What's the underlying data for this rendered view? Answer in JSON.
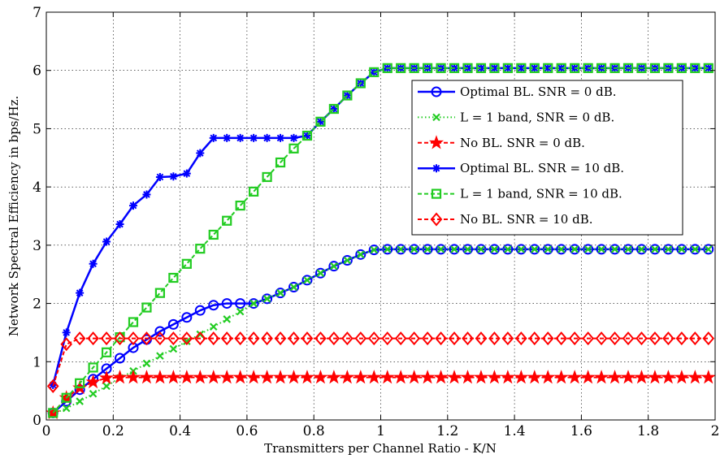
{
  "chart_data": {
    "type": "line",
    "title": "",
    "xlabel": "Transmitters per Channel Ratio - K/N",
    "ylabel": "Network Spectral Efficiency in bps/Hz.",
    "xlim": [
      0,
      2
    ],
    "ylim": [
      0,
      7
    ],
    "xticks": [
      "0",
      "0.2",
      "0.4",
      "0.6",
      "0.8",
      "1",
      "1.2",
      "1.4",
      "1.6",
      "1.8",
      "2"
    ],
    "yticks": [
      "0",
      "1",
      "2",
      "3",
      "4",
      "5",
      "6",
      "7"
    ],
    "grid": true,
    "legend_position": "top-right",
    "x": [
      0.02,
      0.06,
      0.1,
      0.14,
      0.18,
      0.22,
      0.26,
      0.3,
      0.34,
      0.38,
      0.42,
      0.46,
      0.5,
      0.54,
      0.58,
      0.62,
      0.66,
      0.7,
      0.74,
      0.78,
      0.82,
      0.86,
      0.9,
      0.94,
      0.98,
      1.02,
      1.06,
      1.1,
      1.14,
      1.18,
      1.22,
      1.26,
      1.3,
      1.34,
      1.38,
      1.42,
      1.46,
      1.5,
      1.54,
      1.58,
      1.62,
      1.66,
      1.7,
      1.74,
      1.78,
      1.82,
      1.86,
      1.9,
      1.94,
      1.98
    ],
    "series": [
      {
        "name": "Optimal BL. SNR = 0 dB.",
        "color": "#0000ff",
        "marker": "circle",
        "values": [
          0.12,
          0.32,
          0.52,
          0.7,
          0.88,
          1.06,
          1.24,
          1.38,
          1.52,
          1.64,
          1.76,
          1.88,
          1.97,
          2.0,
          2.0,
          2.0,
          2.08,
          2.18,
          2.28,
          2.4,
          2.52,
          2.64,
          2.74,
          2.84,
          2.92,
          2.93,
          2.93,
          2.93,
          2.93,
          2.93,
          2.93,
          2.93,
          2.93,
          2.93,
          2.93,
          2.93,
          2.93,
          2.93,
          2.93,
          2.93,
          2.93,
          2.93,
          2.93,
          2.93,
          2.93,
          2.93,
          2.93,
          2.93,
          2.93,
          2.93
        ]
      },
      {
        "name": "L = 1 band, SNR = 0 dB.",
        "color": "#22cc22",
        "marker": "x",
        "values": [
          0.1,
          0.2,
          0.32,
          0.45,
          0.58,
          0.72,
          0.84,
          0.97,
          1.1,
          1.22,
          1.35,
          1.47,
          1.6,
          1.73,
          1.86,
          2.0,
          2.08,
          2.18,
          2.28,
          2.4,
          2.52,
          2.64,
          2.74,
          2.84,
          2.92,
          2.93,
          2.93,
          2.93,
          2.93,
          2.93,
          2.93,
          2.93,
          2.93,
          2.93,
          2.93,
          2.93,
          2.93,
          2.93,
          2.93,
          2.93,
          2.93,
          2.93,
          2.93,
          2.93,
          2.93,
          2.93,
          2.93,
          2.93,
          2.93,
          2.93
        ]
      },
      {
        "name": "No BL. SNR = 0 dB.",
        "color": "#ff0000",
        "marker": "star",
        "values": [
          0.12,
          0.38,
          0.55,
          0.65,
          0.72,
          0.73,
          0.73,
          0.73,
          0.73,
          0.73,
          0.73,
          0.73,
          0.73,
          0.73,
          0.73,
          0.73,
          0.73,
          0.73,
          0.73,
          0.73,
          0.73,
          0.73,
          0.73,
          0.73,
          0.73,
          0.73,
          0.73,
          0.73,
          0.73,
          0.73,
          0.73,
          0.73,
          0.73,
          0.73,
          0.73,
          0.73,
          0.73,
          0.73,
          0.73,
          0.73,
          0.73,
          0.73,
          0.73,
          0.73,
          0.73,
          0.73,
          0.73,
          0.73,
          0.73,
          0.73
        ]
      },
      {
        "name": "Optimal BL. SNR = 10 dB.",
        "color": "#0000ff",
        "marker": "asterisk",
        "values": [
          0.6,
          1.5,
          2.18,
          2.68,
          3.06,
          3.36,
          3.68,
          3.87,
          4.17,
          4.18,
          4.23,
          4.58,
          4.84,
          4.84,
          4.84,
          4.84,
          4.84,
          4.84,
          4.84,
          4.88,
          5.12,
          5.34,
          5.57,
          5.78,
          5.97,
          6.04,
          6.04,
          6.04,
          6.04,
          6.04,
          6.04,
          6.04,
          6.04,
          6.04,
          6.04,
          6.04,
          6.04,
          6.04,
          6.04,
          6.04,
          6.04,
          6.04,
          6.04,
          6.04,
          6.04,
          6.04,
          6.04,
          6.04,
          6.04,
          6.04
        ]
      },
      {
        "name": "L = 1 band, SNR = 10 dB.",
        "color": "#22cc22",
        "marker": "square",
        "values": [
          0.12,
          0.38,
          0.63,
          0.9,
          1.16,
          1.42,
          1.68,
          1.93,
          2.18,
          2.44,
          2.68,
          2.94,
          3.18,
          3.42,
          3.68,
          3.92,
          4.17,
          4.42,
          4.66,
          4.88,
          5.12,
          5.34,
          5.57,
          5.78,
          5.97,
          6.04,
          6.04,
          6.04,
          6.04,
          6.04,
          6.04,
          6.04,
          6.04,
          6.04,
          6.04,
          6.04,
          6.04,
          6.04,
          6.04,
          6.04,
          6.04,
          6.04,
          6.04,
          6.04,
          6.04,
          6.04,
          6.04,
          6.04,
          6.04,
          6.04
        ]
      },
      {
        "name": "No BL. SNR = 10 dB.",
        "color": "#ff0000",
        "marker": "diamond",
        "values": [
          0.58,
          1.3,
          1.4,
          1.4,
          1.4,
          1.4,
          1.4,
          1.4,
          1.4,
          1.4,
          1.4,
          1.4,
          1.4,
          1.4,
          1.4,
          1.4,
          1.4,
          1.4,
          1.4,
          1.4,
          1.4,
          1.4,
          1.4,
          1.4,
          1.4,
          1.4,
          1.4,
          1.4,
          1.4,
          1.4,
          1.4,
          1.4,
          1.4,
          1.4,
          1.4,
          1.4,
          1.4,
          1.4,
          1.4,
          1.4,
          1.4,
          1.4,
          1.4,
          1.4,
          1.4,
          1.4,
          1.4,
          1.4,
          1.4,
          1.4
        ]
      }
    ]
  }
}
